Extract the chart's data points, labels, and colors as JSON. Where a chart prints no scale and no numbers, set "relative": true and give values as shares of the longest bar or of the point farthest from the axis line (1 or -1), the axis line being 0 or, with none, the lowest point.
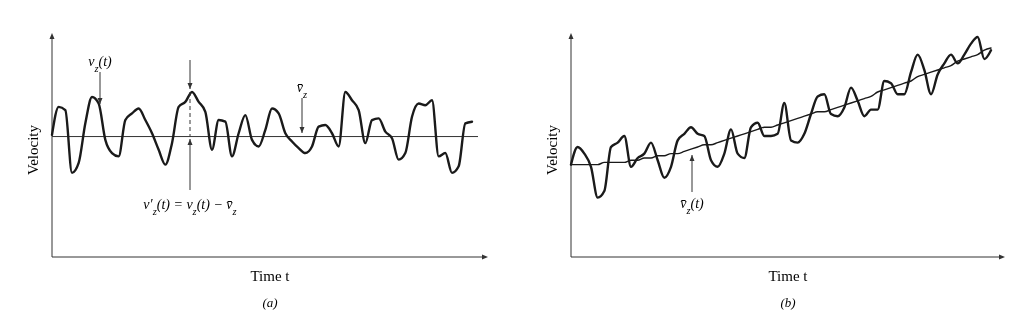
{
  "chart_data": [
    {
      "type": "line",
      "title": "(a)",
      "xlabel": "Time t",
      "ylabel": "Velocity",
      "relative": true,
      "tick_labels": false,
      "categories": [
        null,
        null,
        null,
        null,
        null,
        null,
        null,
        null,
        null,
        null,
        null,
        null,
        null,
        null,
        null,
        null,
        null,
        null,
        null,
        null,
        null,
        null,
        null,
        null,
        null,
        null,
        null,
        null,
        null,
        null,
        null,
        null,
        null,
        null,
        null,
        null,
        null,
        null,
        null,
        null,
        null,
        null,
        null,
        null,
        null,
        null,
        null,
        null,
        null,
        null,
        null,
        null,
        null,
        null,
        null,
        null,
        null,
        null,
        null,
        null,
        null,
        null,
        null,
        null
      ],
      "series": [
        {
          "color": "#1a1a1a",
          "values": [
            0.74,
            0.91,
            0.89,
            0.51,
            0.57,
            0.81,
            0.97,
            0.93,
            0.71,
            0.63,
            0.61,
            0.83,
            0.87,
            0.9,
            0.83,
            0.75,
            0.65,
            0.56,
            0.69,
            0.91,
            0.94,
            1.0,
            0.94,
            0.88,
            0.65,
            0.83,
            0.82,
            0.61,
            0.75,
            0.86,
            0.71,
            0.67,
            0.77,
            0.9,
            0.87,
            0.75,
            0.7,
            0.66,
            0.63,
            0.67,
            0.79,
            0.8,
            0.75,
            0.67,
            1.0,
            0.95,
            0.89,
            0.69,
            0.83,
            0.84,
            0.76,
            0.72,
            0.59,
            0.63,
            0.85,
            0.93,
            0.92,
            0.95,
            0.61,
            0.63,
            0.51,
            0.55,
            0.81,
            0.82
          ]
        }
      ],
      "ref_lines": [
        {
          "axis": "y",
          "value": 0.73
        }
      ],
      "annotations": [
        "v$_{z}$(t)",
        "v′$_{z}$(t) = v$_{z}$(t) − v̄$_{z}$",
        "v̄$_{z}$"
      ]
    },
    {
      "type": "line",
      "title": "(b)",
      "xlabel": "Time t",
      "ylabel": "Velocity",
      "relative": true,
      "tick_labels": false,
      "categories": [
        null,
        null,
        null,
        null,
        null,
        null,
        null,
        null,
        null,
        null,
        null,
        null,
        null,
        null,
        null,
        null,
        null,
        null,
        null,
        null,
        null,
        null,
        null,
        null,
        null,
        null,
        null,
        null,
        null,
        null,
        null,
        null,
        null,
        null,
        null,
        null,
        null,
        null,
        null,
        null,
        null,
        null,
        null,
        null,
        null,
        null,
        null,
        null,
        null,
        null,
        null,
        null,
        null,
        null,
        null,
        null,
        null,
        null,
        null,
        null,
        null,
        null,
        null,
        null
      ],
      "series": [
        {
          "color": "#1a1a1a",
          "values": [
            0.42,
            0.5,
            0.47,
            0.41,
            0.27,
            0.3,
            0.5,
            0.52,
            0.55,
            0.41,
            0.45,
            0.47,
            0.52,
            0.44,
            0.36,
            0.41,
            0.53,
            0.56,
            0.59,
            0.56,
            0.55,
            0.44,
            0.41,
            0.47,
            0.58,
            0.47,
            0.45,
            0.59,
            0.61,
            0.55,
            0.55,
            0.56,
            0.7,
            0.53,
            0.52,
            0.56,
            0.65,
            0.73,
            0.74,
            0.65,
            0.64,
            0.68,
            0.77,
            0.71,
            0.64,
            0.67,
            0.67,
            0.8,
            0.79,
            0.74,
            0.74,
            0.84,
            0.92,
            0.85,
            0.74,
            0.83,
            0.88,
            0.92,
            0.88,
            0.92,
            0.97,
            1.0,
            0.9,
            0.94
          ]
        },
        {
          "color": "#1a1a1a",
          "type": "line",
          "values": [
            0.42,
            0.42,
            0.42,
            0.42,
            0.42,
            0.43,
            0.43,
            0.43,
            0.43,
            0.44,
            0.44,
            0.45,
            0.45,
            0.46,
            0.46,
            0.47,
            0.47,
            0.48,
            0.49,
            0.5,
            0.51,
            0.51,
            0.52,
            0.53,
            0.54,
            0.55,
            0.56,
            0.57,
            0.58,
            0.59,
            0.59,
            0.6,
            0.61,
            0.62,
            0.63,
            0.64,
            0.65,
            0.66,
            0.66,
            0.67,
            0.68,
            0.69,
            0.7,
            0.71,
            0.72,
            0.73,
            0.75,
            0.76,
            0.77,
            0.78,
            0.79,
            0.8,
            0.82,
            0.83,
            0.84,
            0.85,
            0.86,
            0.87,
            0.89,
            0.9,
            0.91,
            0.92,
            0.94,
            0.95
          ]
        }
      ],
      "annotations": [
        "v̄$_{z}$(t)"
      ]
    }
  ]
}
